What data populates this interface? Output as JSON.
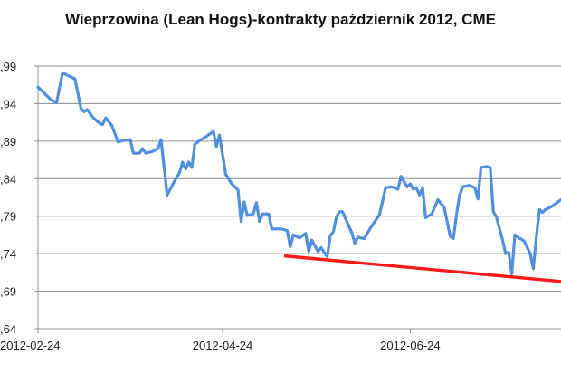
{
  "chart_data": {
    "type": "line",
    "title": "Wieprzowina (Lean Hogs)-kontrakty październik 2012, CME",
    "xlabel": "",
    "ylabel": "",
    "x_tick_labels": [
      "2012-02-24",
      "2012-04-24",
      "2012-06-24"
    ],
    "x_range": [
      "2012-02-24",
      "2012-08-12"
    ],
    "y_tick_labels": [
      ",64",
      ",69",
      ",74",
      ",79",
      ",84",
      ",89",
      ",94",
      ",99"
    ],
    "y_ticks": [
      0.64,
      0.69,
      0.74,
      0.79,
      0.84,
      0.89,
      0.94,
      0.99
    ],
    "ylim": [
      0.64,
      0.99
    ],
    "grid": true,
    "legend": "none",
    "series": [
      {
        "color": "#4f8fdb",
        "points": [
          [
            "2012-02-24",
            0.962
          ],
          [
            "2012-02-26",
            0.954
          ],
          [
            "2012-02-28",
            0.946
          ],
          [
            "2012-03-01",
            0.941
          ],
          [
            "2012-03-03",
            0.981
          ],
          [
            "2012-03-05",
            0.977
          ],
          [
            "2012-03-07",
            0.973
          ],
          [
            "2012-03-09",
            0.933
          ],
          [
            "2012-03-10",
            0.929
          ],
          [
            "2012-03-11",
            0.932
          ],
          [
            "2012-03-13",
            0.921
          ],
          [
            "2012-03-15",
            0.914
          ],
          [
            "2012-03-16",
            0.912
          ],
          [
            "2012-03-17",
            0.921
          ],
          [
            "2012-03-19",
            0.911
          ],
          [
            "2012-03-21",
            0.889
          ],
          [
            "2012-03-23",
            0.891
          ],
          [
            "2012-03-25",
            0.892
          ],
          [
            "2012-03-26",
            0.874
          ],
          [
            "2012-03-28",
            0.874
          ],
          [
            "2012-03-29",
            0.88
          ],
          [
            "2012-03-30",
            0.874
          ],
          [
            "2012-04-01",
            0.876
          ],
          [
            "2012-04-03",
            0.88
          ],
          [
            "2012-04-04",
            0.892
          ],
          [
            "2012-04-06",
            0.818
          ],
          [
            "2012-04-08",
            0.834
          ],
          [
            "2012-04-10",
            0.848
          ],
          [
            "2012-04-11",
            0.862
          ],
          [
            "2012-04-12",
            0.853
          ],
          [
            "2012-04-13",
            0.862
          ],
          [
            "2012-04-14",
            0.855
          ],
          [
            "2012-04-15",
            0.886
          ],
          [
            "2012-04-17",
            0.892
          ],
          [
            "2012-04-19",
            0.897
          ],
          [
            "2012-04-21",
            0.903
          ],
          [
            "2012-04-22",
            0.883
          ],
          [
            "2012-04-23",
            0.898
          ],
          [
            "2012-04-25",
            0.846
          ],
          [
            "2012-04-27",
            0.833
          ],
          [
            "2012-04-29",
            0.825
          ],
          [
            "2012-04-30",
            0.783
          ],
          [
            "2012-05-01",
            0.809
          ],
          [
            "2012-05-02",
            0.791
          ],
          [
            "2012-05-04",
            0.793
          ],
          [
            "2012-05-05",
            0.808
          ],
          [
            "2012-05-06",
            0.783
          ],
          [
            "2012-05-07",
            0.793
          ],
          [
            "2012-05-09",
            0.793
          ],
          [
            "2012-05-10",
            0.773
          ],
          [
            "2012-05-13",
            0.773
          ],
          [
            "2012-05-15",
            0.771
          ],
          [
            "2012-05-16",
            0.749
          ],
          [
            "2012-05-17",
            0.765
          ],
          [
            "2012-05-19",
            0.761
          ],
          [
            "2012-05-21",
            0.767
          ],
          [
            "2012-05-22",
            0.743
          ],
          [
            "2012-05-23",
            0.758
          ],
          [
            "2012-05-25",
            0.743
          ],
          [
            "2012-05-26",
            0.748
          ],
          [
            "2012-05-28",
            0.736
          ],
          [
            "2012-05-29",
            0.764
          ],
          [
            "2012-05-30",
            0.769
          ],
          [
            "2012-05-31",
            0.789
          ],
          [
            "2012-06-01",
            0.796
          ],
          [
            "2012-06-02",
            0.796
          ],
          [
            "2012-06-03",
            0.786
          ],
          [
            "2012-06-05",
            0.768
          ],
          [
            "2012-06-06",
            0.754
          ],
          [
            "2012-06-07",
            0.762
          ],
          [
            "2012-06-09",
            0.76
          ],
          [
            "2012-06-10",
            0.767
          ],
          [
            "2012-06-12",
            0.78
          ],
          [
            "2012-06-14",
            0.792
          ],
          [
            "2012-06-16",
            0.828
          ],
          [
            "2012-06-18",
            0.829
          ],
          [
            "2012-06-20",
            0.826
          ],
          [
            "2012-06-21",
            0.843
          ],
          [
            "2012-06-23",
            0.829
          ],
          [
            "2012-06-24",
            0.833
          ],
          [
            "2012-06-25",
            0.826
          ],
          [
            "2012-06-26",
            0.828
          ],
          [
            "2012-06-27",
            0.818
          ],
          [
            "2012-06-28",
            0.828
          ],
          [
            "2012-06-29",
            0.788
          ],
          [
            "2012-07-01",
            0.793
          ],
          [
            "2012-07-03",
            0.812
          ],
          [
            "2012-07-05",
            0.802
          ],
          [
            "2012-07-07",
            0.763
          ],
          [
            "2012-07-08",
            0.76
          ],
          [
            "2012-07-09",
            0.791
          ],
          [
            "2012-07-10",
            0.817
          ],
          [
            "2012-07-11",
            0.829
          ],
          [
            "2012-07-13",
            0.831
          ],
          [
            "2012-07-15",
            0.828
          ],
          [
            "2012-07-16",
            0.813
          ],
          [
            "2012-07-17",
            0.855
          ],
          [
            "2012-07-19",
            0.856
          ],
          [
            "2012-07-20",
            0.855
          ],
          [
            "2012-07-21",
            0.796
          ],
          [
            "2012-07-22",
            0.789
          ],
          [
            "2012-07-24",
            0.758
          ],
          [
            "2012-07-25",
            0.74
          ],
          [
            "2012-07-26",
            0.742
          ],
          [
            "2012-07-27",
            0.713
          ],
          [
            "2012-07-28",
            0.765
          ],
          [
            "2012-07-29",
            0.762
          ],
          [
            "2012-07-31",
            0.757
          ],
          [
            "2012-08-02",
            0.74
          ],
          [
            "2012-08-03",
            0.72
          ],
          [
            "2012-08-04",
            0.763
          ],
          [
            "2012-08-05",
            0.799
          ],
          [
            "2012-08-06",
            0.795
          ],
          [
            "2012-08-07",
            0.799
          ],
          [
            "2012-08-09",
            0.803
          ],
          [
            "2012-08-12",
            0.812
          ]
        ]
      }
    ],
    "trendline": {
      "color": "#ff1a1a",
      "points": [
        [
          "2012-05-14",
          0.737
        ],
        [
          "2012-08-12",
          0.703
        ]
      ]
    }
  }
}
